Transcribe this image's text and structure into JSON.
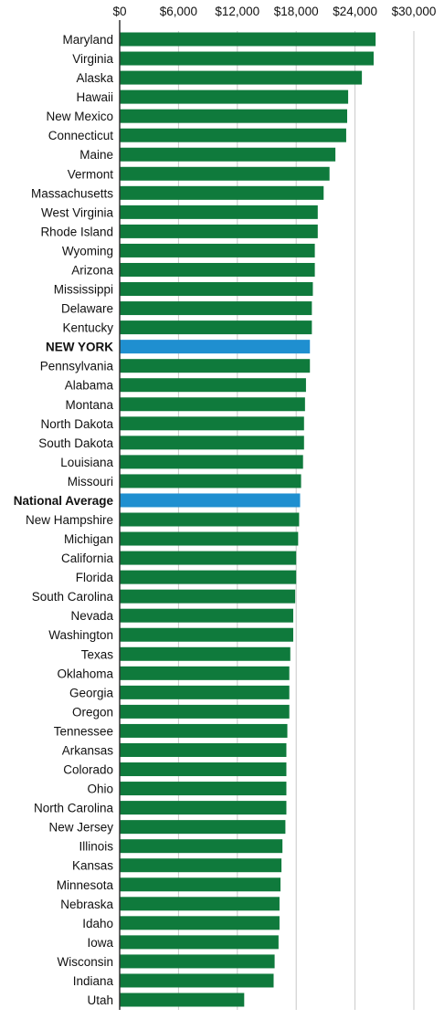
{
  "colors": {
    "default_bar": "#0f7a3c",
    "highlight_bar": "#1f8fd0",
    "grid": "#c8c8c8",
    "axis": "#333333"
  },
  "chart_data": {
    "type": "bar",
    "orientation": "horizontal",
    "grid": true,
    "xlim": [
      0,
      30000
    ],
    "x_ticks": [
      0,
      6000,
      12000,
      18000,
      24000,
      30000
    ],
    "x_tick_labels": [
      "$0",
      "$6,000",
      "$12,000",
      "$18,000",
      "$24,000",
      "$30,000"
    ],
    "categories": [
      "Maryland",
      "Virginia",
      "Alaska",
      "Hawaii",
      "New Mexico",
      "Connecticut",
      "Maine",
      "Vermont",
      "Massachusetts",
      "West Virginia",
      "Rhode Island",
      "Wyoming",
      "Arizona",
      "Mississippi",
      "Delaware",
      "Kentucky",
      "NEW YORK",
      "Pennsylvania",
      "Alabama",
      "Montana",
      "North Dakota",
      "South Dakota",
      "Louisiana",
      "Missouri",
      "National Average",
      "New Hampshire",
      "Michigan",
      "California",
      "Florida",
      "South Carolina",
      "Nevada",
      "Washington",
      "Texas",
      "Oklahoma",
      "Georgia",
      "Oregon",
      "Tennessee",
      "Arkansas",
      "Colorado",
      "Ohio",
      "North Carolina",
      "New Jersey",
      "Illinois",
      "Kansas",
      "Minnesota",
      "Nebraska",
      "Idaho",
      "Iowa",
      "Wisconsin",
      "Indiana",
      "Utah"
    ],
    "values": [
      26100,
      25900,
      24700,
      23300,
      23200,
      23100,
      22000,
      21400,
      20800,
      20200,
      20200,
      19900,
      19900,
      19700,
      19600,
      19600,
      19400,
      19400,
      19000,
      18900,
      18800,
      18800,
      18700,
      18500,
      18400,
      18300,
      18200,
      18000,
      18000,
      17900,
      17700,
      17700,
      17400,
      17300,
      17300,
      17300,
      17100,
      17000,
      17000,
      17000,
      17000,
      16900,
      16600,
      16500,
      16400,
      16300,
      16300,
      16200,
      15800,
      15700,
      12700
    ],
    "highlight": [
      "NEW YORK",
      "National Average"
    ]
  }
}
